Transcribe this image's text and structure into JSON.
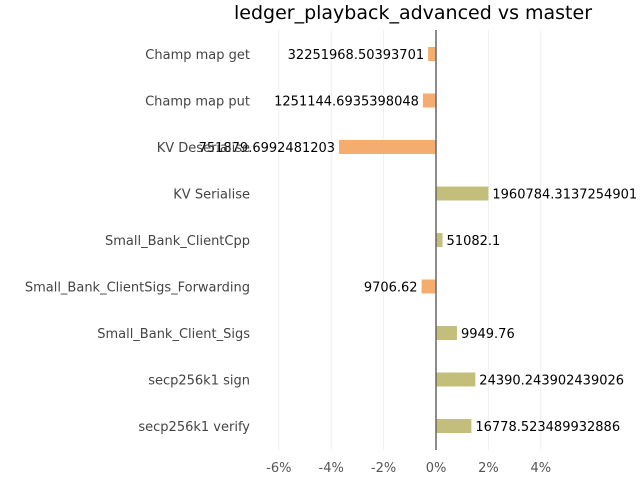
{
  "chart_data": {
    "type": "bar",
    "orientation": "horizontal",
    "title": "ledger_playback_advanced vs master",
    "xlabel": "",
    "ylabel": "",
    "categories": [
      "Champ map get",
      "Champ map put",
      "KV Deserialise",
      "KV Serialise",
      "Small_Bank_ClientCpp",
      "Small_Bank_ClientSigs_Forwarding",
      "Small_Bank_Client_Sigs",
      "secp256k1 sign",
      "secp256k1 verify"
    ],
    "values": [
      -0.3,
      -0.5,
      -3.7,
      2.0,
      0.25,
      -0.55,
      0.8,
      1.5,
      1.35
    ],
    "data_labels": [
      "32251968.50393701",
      "1251144.6935398048",
      "751879.6992481203",
      "1960784.3137254901",
      "51082.1",
      "9706.62",
      "9949.76",
      "24390.243902439026",
      "16778.523489932886"
    ],
    "xlim": [
      -6.5,
      5
    ],
    "xticks": [
      -6,
      -4,
      -2,
      0,
      2,
      4
    ],
    "xtick_labels": [
      "-6%",
      "-4%",
      "-2%",
      "0%",
      "2%",
      "4%"
    ],
    "grid": "vertical",
    "colors": {
      "negative": "#f4ad6f",
      "positive": "#c3bf7b",
      "zero_line": "#666666",
      "grid": "#eeeeee"
    }
  }
}
